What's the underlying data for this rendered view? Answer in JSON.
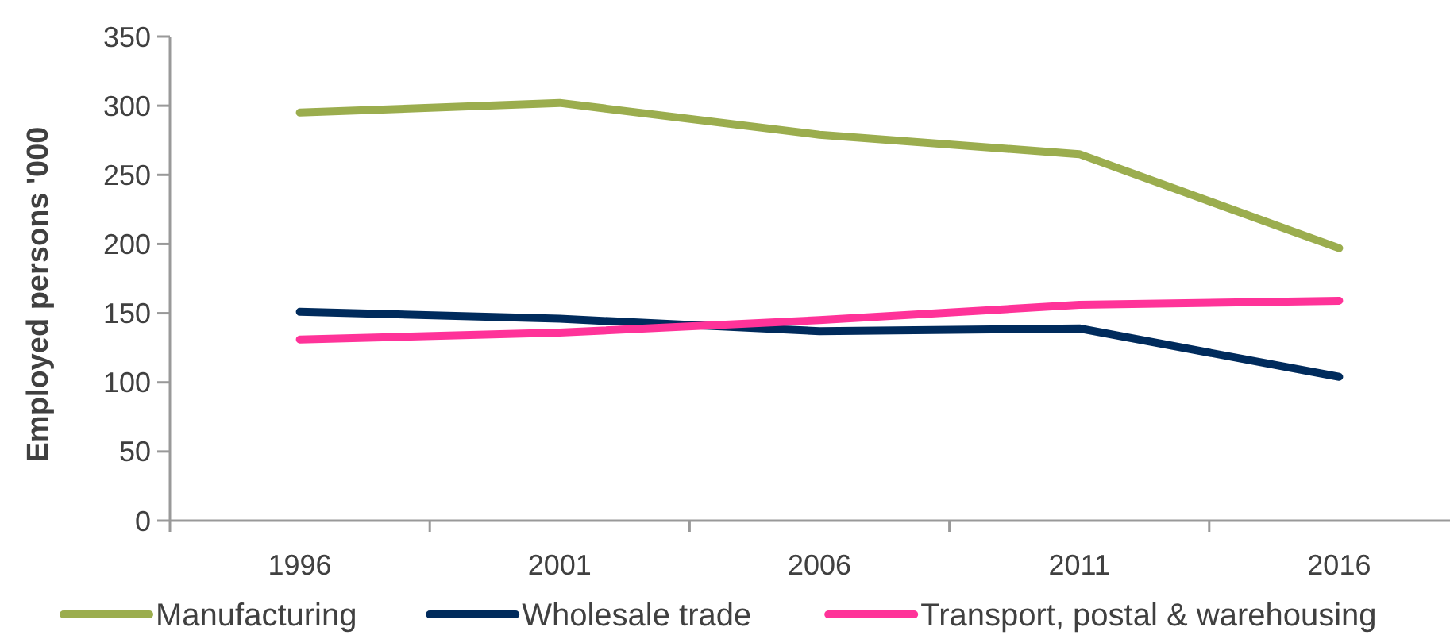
{
  "chart_data": {
    "type": "line",
    "ylabel": "Employed persons '000",
    "categories": [
      "1996",
      "2001",
      "2006",
      "2011",
      "2016"
    ],
    "series": [
      {
        "name": "Manufacturing",
        "color": "#9bad4e",
        "values": [
          295,
          302,
          279,
          265,
          197
        ]
      },
      {
        "name": "Wholesale trade",
        "color": "#002b5c",
        "values": [
          151,
          146,
          137,
          139,
          104
        ]
      },
      {
        "name": "Transport, postal & warehousing",
        "color": "#ff3399",
        "values": [
          131,
          136,
          145,
          156,
          159
        ]
      }
    ],
    "ylim": [
      0,
      350
    ],
    "yticks": [
      0,
      50,
      100,
      150,
      200,
      250,
      300,
      350
    ],
    "grid": false,
    "legend": "bottom",
    "marker": "none",
    "line_style": "solid"
  }
}
